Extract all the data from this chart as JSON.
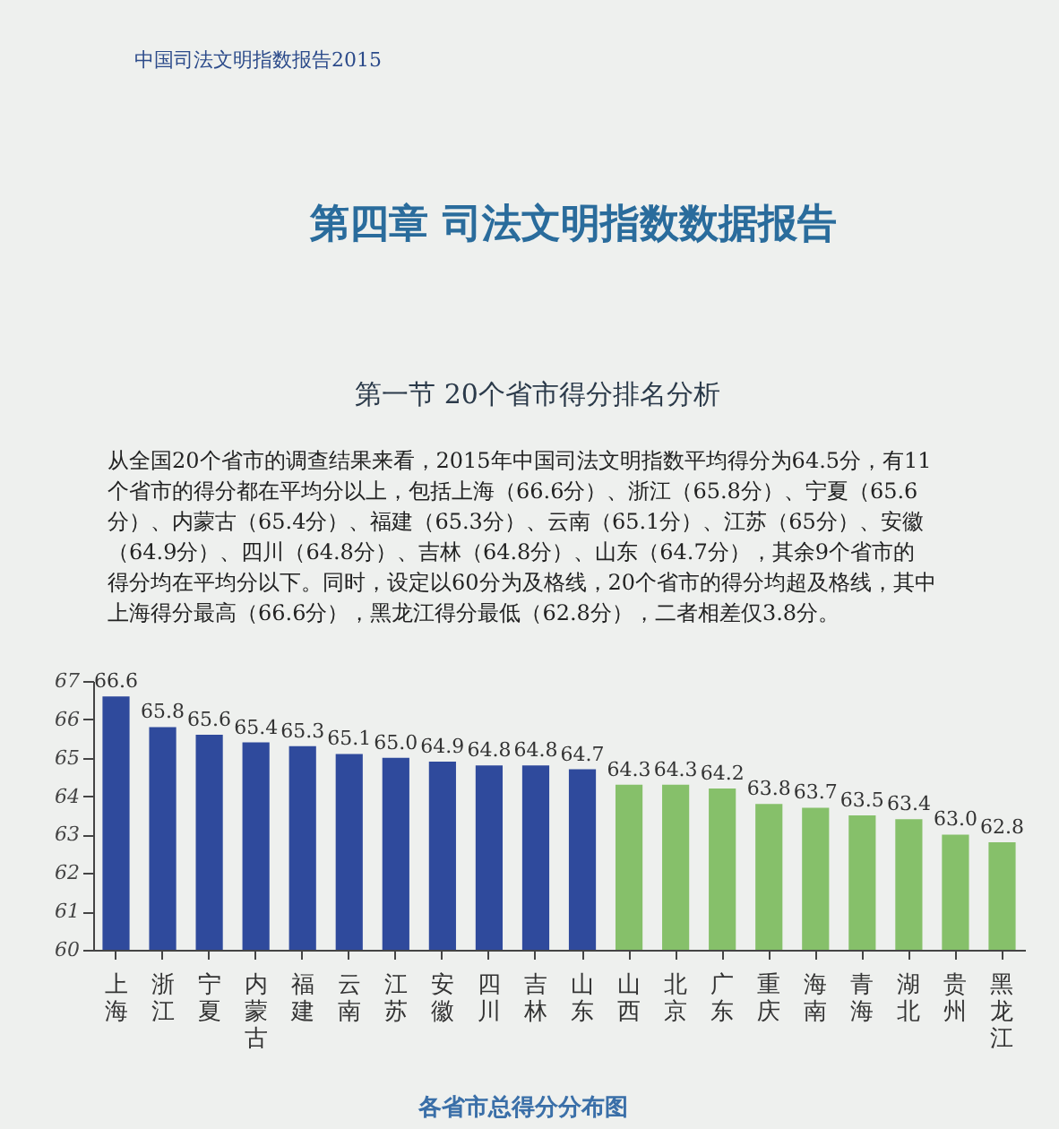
{
  "chart_data": {
    "type": "bar",
    "title": "第四章 司法文明指数数据报告",
    "subtitle": "第一节 20个省市得分排名分析",
    "categories": [
      "上海",
      "浙江",
      "宁夏",
      "内蒙古",
      "福建",
      "云南",
      "江苏",
      "安徽",
      "四川",
      "吉林",
      "山东",
      "山西",
      "北京",
      "广东",
      "重庆",
      "海南",
      "青海",
      "湖北",
      "贵州",
      "黑龙江"
    ],
    "values": [
      66.6,
      65.8,
      65.6,
      65.4,
      65.3,
      65.1,
      65.0,
      64.9,
      64.8,
      64.8,
      64.7,
      64.3,
      64.3,
      64.2,
      63.8,
      63.7,
      63.5,
      63.4,
      63.0,
      62.8
    ],
    "value_labels": [
      "66.6",
      "65.8",
      "65.6",
      "65.4",
      "65.3",
      "65.1",
      "65.0",
      "64.9",
      "64.8",
      "64.8",
      "64.7",
      "64.3",
      "64.3",
      "64.2",
      "63.8",
      "63.7",
      "63.5",
      "63.4",
      "63.0",
      "62.8"
    ],
    "colors": [
      "#2f4a9c",
      "#2f4a9c",
      "#2f4a9c",
      "#2f4a9c",
      "#2f4a9c",
      "#2f4a9c",
      "#2f4a9c",
      "#2f4a9c",
      "#2f4a9c",
      "#2f4a9c",
      "#2f4a9c",
      "#86c06a",
      "#86c06a",
      "#86c06a",
      "#86c06a",
      "#86c06a",
      "#86c06a",
      "#86c06a",
      "#86c06a",
      "#86c06a"
    ],
    "ylim": [
      60,
      67
    ],
    "yticks": [
      60,
      61,
      62,
      63,
      64,
      65,
      66,
      67
    ],
    "grid": false,
    "annotations": [
      "中国司法文明指数报告2015",
      "从全国20个省市的调查结果来看，2015年中国司法文明指数平均得分为64.5分，有11个省市的得分都在平均分以上，包括上海（66.6分）、浙江（65.8分）、宁夏（65.6分）、内蒙古（65.4分）、福建（65.3分）、云南（65.1分）、江苏（65分）、安徽（64.9分）、四川（64.8分）、吉林（64.8分）、山东（64.7分），其余9个省市的得分均在平均分以下。同时，设定以60分为及格线，20个省市的得分均超及格线，其中上海得分最高（66.6分），黑龙江得分最低（62.8分），二者相差仅3.8分。",
      "各省市总得分分布图"
    ]
  }
}
